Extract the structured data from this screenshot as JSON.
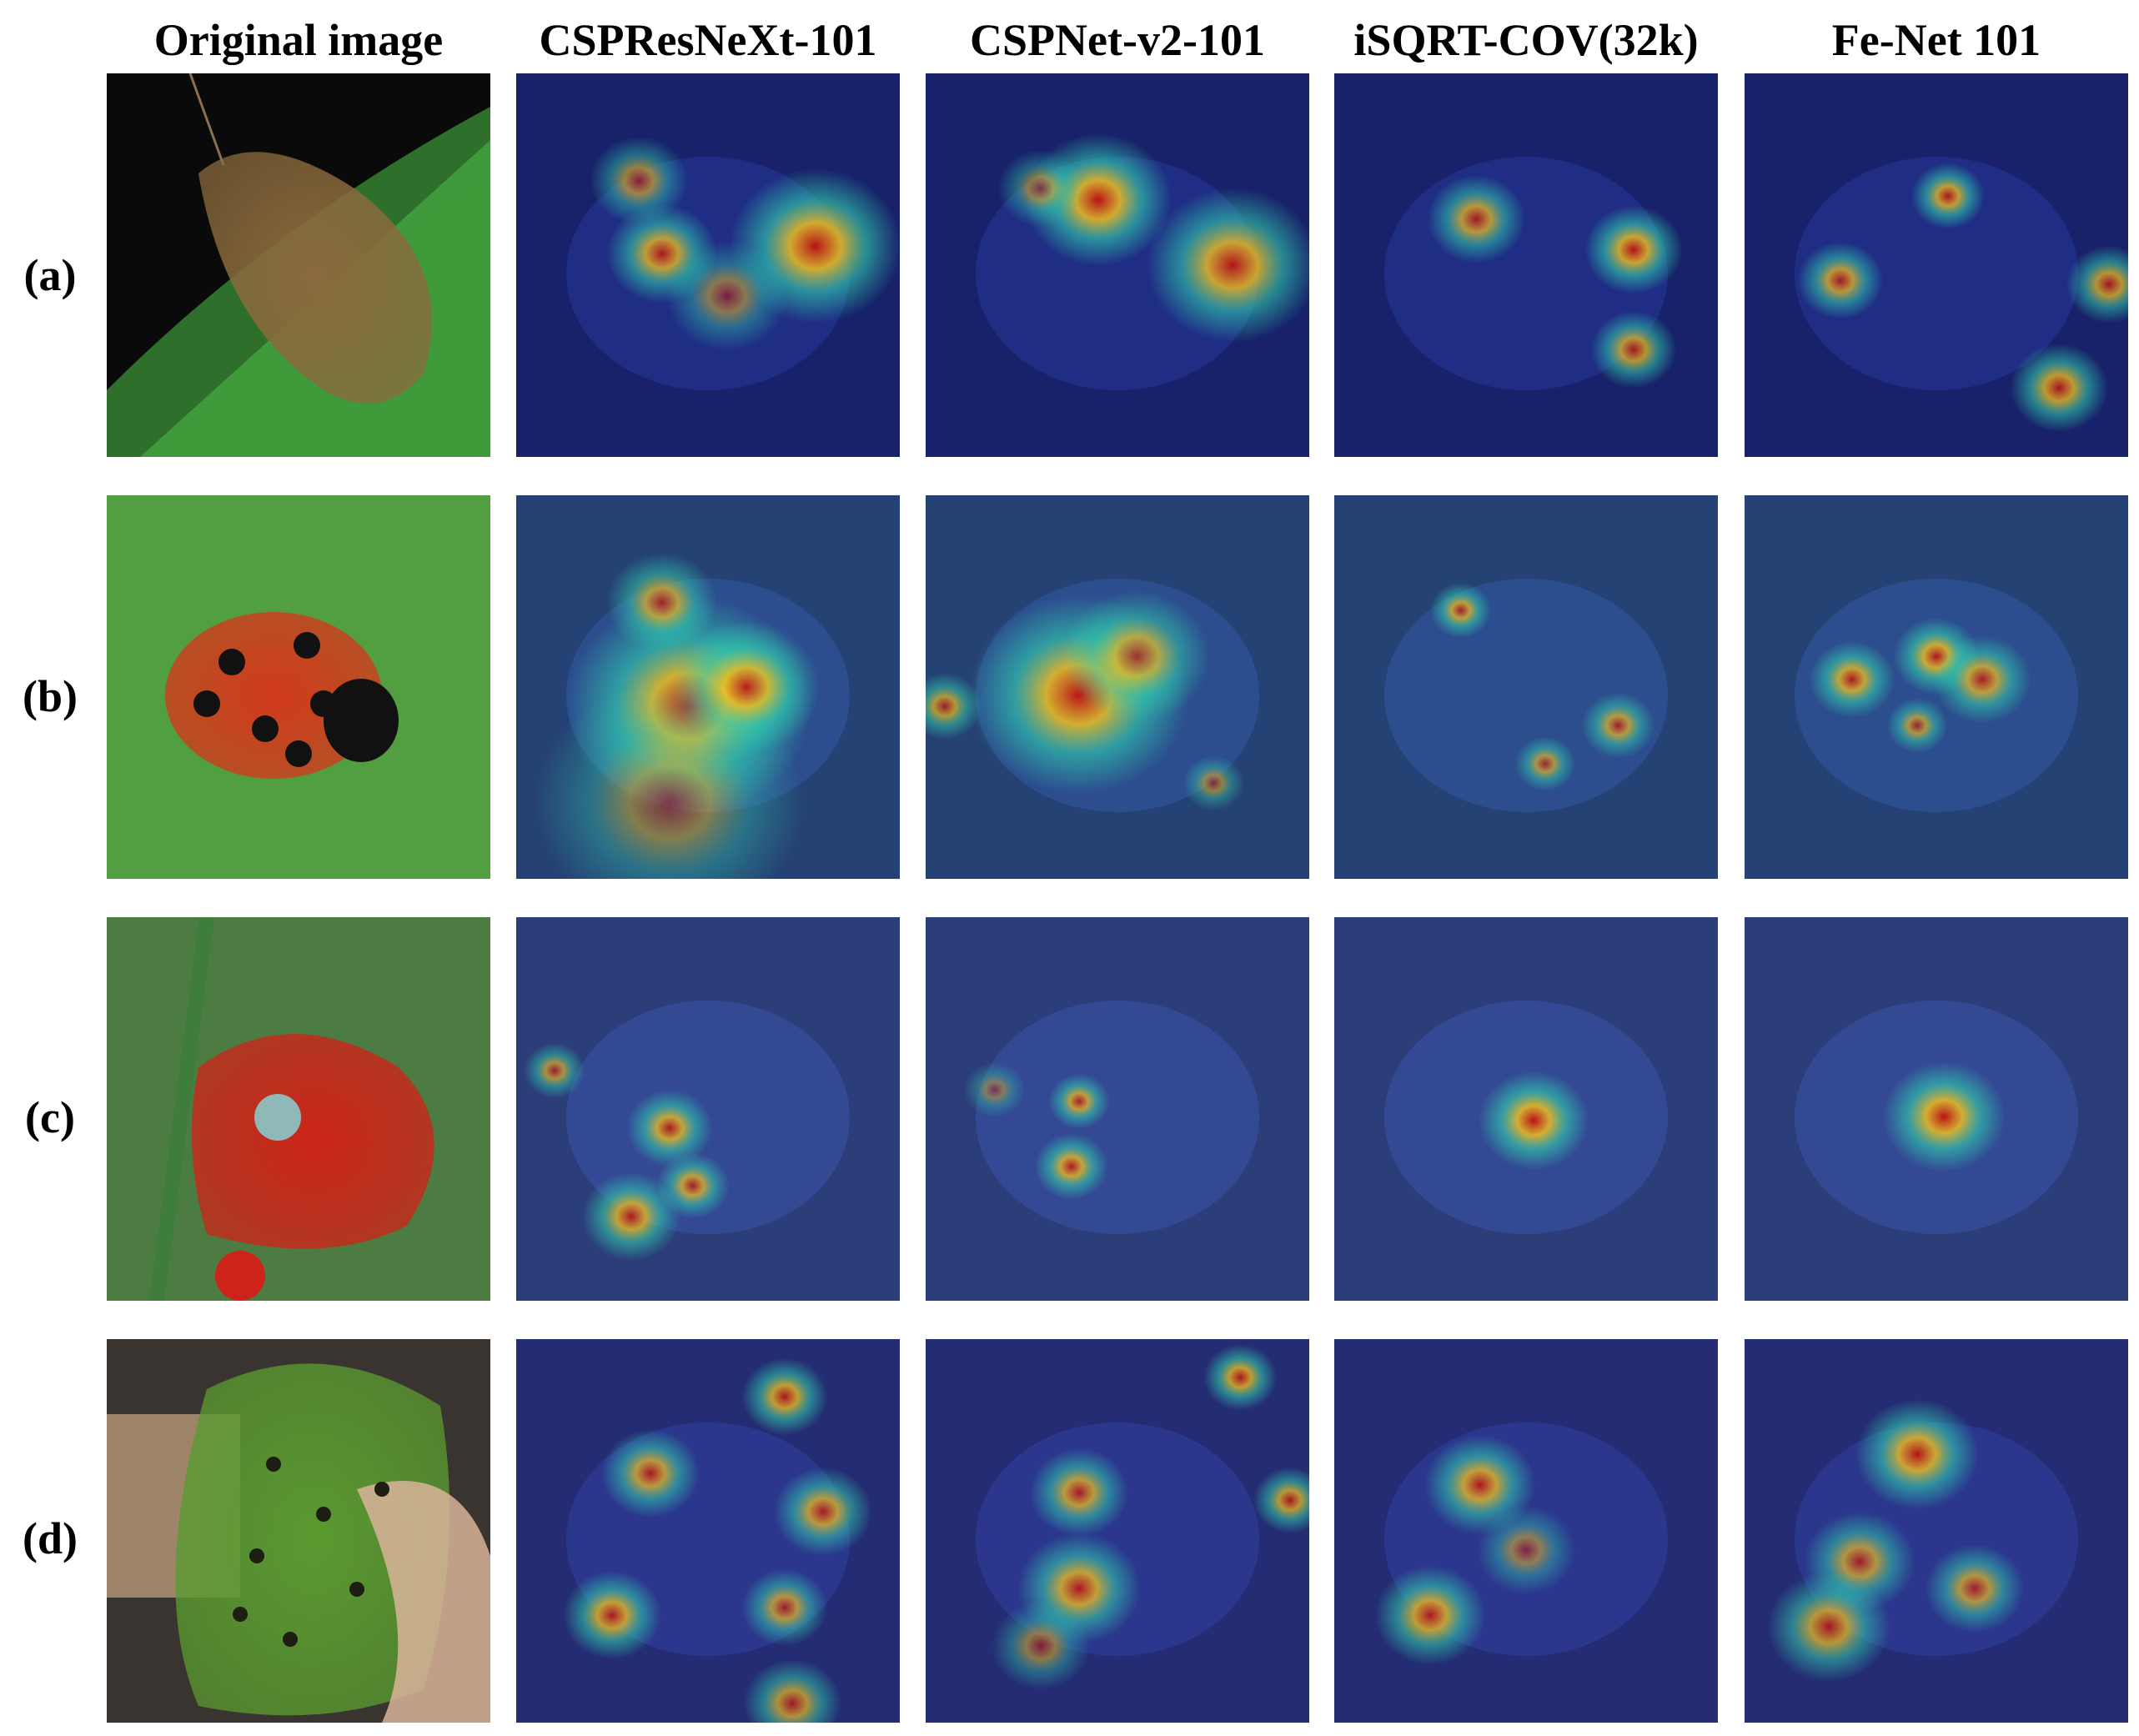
{
  "figure": {
    "column_headers": [
      "Original image",
      "CSPResNeXt-101",
      "CSPNet-v2-101",
      "iSQRT-COV(32k)",
      "Fe-Net 101"
    ],
    "row_labels": [
      "(a)",
      "(b)",
      "(c)",
      "(d)"
    ],
    "rows": [
      {
        "subject": "moth",
        "original": {
          "background": "#0a0a0a",
          "leaf": "#3f9a3a",
          "body": "#8a6a3c"
        },
        "heatmaps": [
          {
            "model": "CSPResNeXt-101",
            "hotspots": [
              [
                0.78,
                0.45,
                0.14,
                1.0
              ],
              [
                0.38,
                0.47,
                0.09,
                0.9
              ],
              [
                0.32,
                0.28,
                0.08,
                0.7
              ],
              [
                0.55,
                0.58,
                0.1,
                0.6
              ]
            ]
          },
          {
            "model": "CSPNet-v2-101",
            "hotspots": [
              [
                0.45,
                0.33,
                0.12,
                1.0
              ],
              [
                0.8,
                0.5,
                0.14,
                0.95
              ],
              [
                0.3,
                0.3,
                0.07,
                0.6
              ]
            ]
          },
          {
            "model": "iSQRT-COV(32k)",
            "hotspots": [
              [
                0.37,
                0.38,
                0.08,
                0.85
              ],
              [
                0.78,
                0.46,
                0.08,
                0.95
              ],
              [
                0.78,
                0.72,
                0.07,
                0.85
              ]
            ]
          },
          {
            "model": "Fe-Net 101",
            "hotspots": [
              [
                0.53,
                0.32,
                0.06,
                0.9
              ],
              [
                0.25,
                0.54,
                0.07,
                0.85
              ],
              [
                0.95,
                0.55,
                0.07,
                0.85
              ],
              [
                0.82,
                0.82,
                0.08,
                0.9
              ]
            ]
          }
        ]
      },
      {
        "subject": "ladybug",
        "original": {
          "background": "#3e8a34",
          "leaf": "#5fae4a",
          "body": "#d23a1c"
        },
        "heatmaps": [
          {
            "model": "CSPResNeXt-101",
            "hotspots": [
              [
                0.45,
                0.55,
                0.2,
                1.0
              ],
              [
                0.6,
                0.5,
                0.12,
                0.95
              ],
              [
                0.38,
                0.28,
                0.09,
                0.8
              ],
              [
                0.4,
                0.8,
                0.22,
                0.55
              ]
            ]
          },
          {
            "model": "CSPNet-v2-101",
            "hotspots": [
              [
                0.4,
                0.52,
                0.18,
                1.0
              ],
              [
                0.55,
                0.42,
                0.12,
                0.8
              ],
              [
                0.05,
                0.55,
                0.06,
                0.8
              ],
              [
                0.75,
                0.75,
                0.05,
                0.6
              ]
            ]
          },
          {
            "model": "iSQRT-COV(32k)",
            "hotspots": [
              [
                0.33,
                0.3,
                0.05,
                0.85
              ],
              [
                0.74,
                0.6,
                0.06,
                0.8
              ],
              [
                0.55,
                0.7,
                0.05,
                0.75
              ]
            ]
          },
          {
            "model": "Fe-Net 101",
            "hotspots": [
              [
                0.28,
                0.48,
                0.07,
                0.9
              ],
              [
                0.5,
                0.42,
                0.07,
                0.95
              ],
              [
                0.62,
                0.48,
                0.08,
                0.85
              ],
              [
                0.45,
                0.6,
                0.05,
                0.75
              ]
            ]
          }
        ]
      },
      {
        "subject": "red pepper",
        "original": {
          "background": "#5a7a4a",
          "leaf": "#3f7e3a",
          "body": "#cc2418"
        },
        "heatmaps": [
          {
            "model": "CSPResNeXt-101",
            "hotspots": [
              [
                0.4,
                0.55,
                0.07,
                0.9
              ],
              [
                0.46,
                0.7,
                0.06,
                0.85
              ],
              [
                0.3,
                0.78,
                0.08,
                0.9
              ],
              [
                0.1,
                0.4,
                0.05,
                0.75
              ]
            ]
          },
          {
            "model": "CSPNet-v2-101",
            "hotspots": [
              [
                0.4,
                0.48,
                0.05,
                0.85
              ],
              [
                0.38,
                0.65,
                0.06,
                0.9
              ],
              [
                0.18,
                0.45,
                0.05,
                0.5
              ]
            ]
          },
          {
            "model": "iSQRT-COV(32k)",
            "hotspots": [
              [
                0.52,
                0.53,
                0.09,
                1.0
              ]
            ]
          },
          {
            "model": "Fe-Net 101",
            "hotspots": [
              [
                0.52,
                0.52,
                0.1,
                1.0
              ]
            ]
          }
        ]
      },
      {
        "subject": "green pepper",
        "original": {
          "background": "#3a3430",
          "leaf": "#b89a78",
          "body": "#5a9a30"
        },
        "heatmaps": [
          {
            "model": "CSPResNeXt-101",
            "hotspots": [
              [
                0.7,
                0.15,
                0.07,
                0.9
              ],
              [
                0.35,
                0.35,
                0.08,
                0.85
              ],
              [
                0.8,
                0.45,
                0.08,
                0.85
              ],
              [
                0.25,
                0.72,
                0.08,
                0.9
              ],
              [
                0.7,
                0.7,
                0.07,
                0.8
              ],
              [
                0.72,
                0.95,
                0.08,
                0.8
              ]
            ]
          },
          {
            "model": "CSPNet-v2-101",
            "hotspots": [
              [
                0.4,
                0.4,
                0.08,
                0.85
              ],
              [
                0.4,
                0.65,
                0.1,
                0.9
              ],
              [
                0.82,
                0.1,
                0.06,
                0.9
              ],
              [
                0.95,
                0.42,
                0.06,
                0.85
              ],
              [
                0.3,
                0.8,
                0.08,
                0.6
              ]
            ]
          },
          {
            "model": "iSQRT-COV(32k)",
            "hotspots": [
              [
                0.38,
                0.38,
                0.09,
                0.9
              ],
              [
                0.25,
                0.72,
                0.09,
                0.9
              ],
              [
                0.5,
                0.55,
                0.08,
                0.6
              ]
            ]
          },
          {
            "model": "Fe-Net 101",
            "hotspots": [
              [
                0.45,
                0.3,
                0.1,
                0.95
              ],
              [
                0.3,
                0.58,
                0.09,
                0.8
              ],
              [
                0.22,
                0.75,
                0.1,
                0.85
              ],
              [
                0.6,
                0.65,
                0.08,
                0.8
              ]
            ]
          }
        ]
      }
    ]
  }
}
